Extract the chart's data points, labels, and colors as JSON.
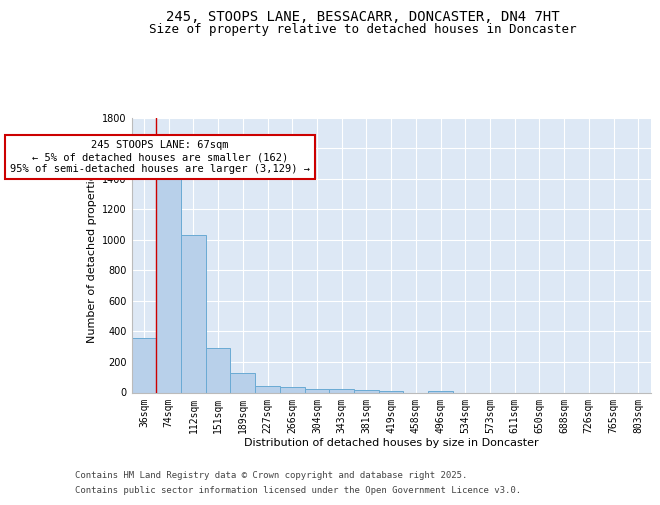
{
  "title_line1": "245, STOOPS LANE, BESSACARR, DONCASTER, DN4 7HT",
  "title_line2": "Size of property relative to detached houses in Doncaster",
  "xlabel": "Distribution of detached houses by size in Doncaster",
  "ylabel": "Number of detached properties",
  "categories": [
    "36sqm",
    "74sqm",
    "112sqm",
    "151sqm",
    "189sqm",
    "227sqm",
    "266sqm",
    "304sqm",
    "343sqm",
    "381sqm",
    "419sqm",
    "458sqm",
    "496sqm",
    "534sqm",
    "573sqm",
    "611sqm",
    "650sqm",
    "688sqm",
    "726sqm",
    "765sqm",
    "803sqm"
  ],
  "values": [
    360,
    1400,
    1030,
    290,
    130,
    40,
    35,
    25,
    20,
    15,
    10,
    0,
    13,
    0,
    0,
    0,
    0,
    0,
    0,
    0,
    0
  ],
  "bar_color": "#b8d0ea",
  "bar_edgecolor": "#6aaad4",
  "annotation_text_line1": "245 STOOPS LANE: 67sqm",
  "annotation_text_line2": "← 5% of detached houses are smaller (162)",
  "annotation_text_line3": "95% of semi-detached houses are larger (3,129) →",
  "annotation_box_facecolor": "#ffffff",
  "annotation_box_edgecolor": "#cc0000",
  "red_line_x": 0.5,
  "ylim": [
    0,
    1800
  ],
  "yticks": [
    0,
    200,
    400,
    600,
    800,
    1000,
    1200,
    1400,
    1600,
    1800
  ],
  "background_color": "#dde8f5",
  "grid_color": "#ffffff",
  "footer_line1": "Contains HM Land Registry data © Crown copyright and database right 2025.",
  "footer_line2": "Contains public sector information licensed under the Open Government Licence v3.0.",
  "title_fontsize": 10,
  "subtitle_fontsize": 9,
  "axis_label_fontsize": 8,
  "tick_fontsize": 7,
  "annotation_fontsize": 7.5,
  "footer_fontsize": 6.5
}
